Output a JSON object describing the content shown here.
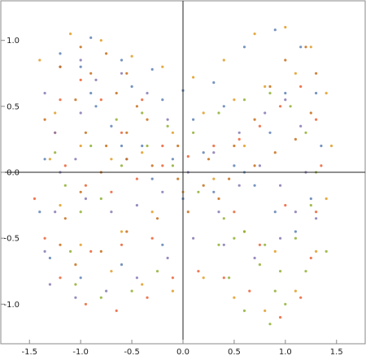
{
  "chart_data": {
    "type": "scatter",
    "title": "",
    "xlabel": "",
    "ylabel": "",
    "xlim": [
      -1.78,
      1.78
    ],
    "ylim": [
      -1.3,
      1.3
    ],
    "grid": false,
    "frame": true,
    "axes_through_origin": true,
    "x_ticks": [
      {
        "value": -1.5,
        "label": "-1.5"
      },
      {
        "value": -1.0,
        "label": "-1.0"
      },
      {
        "value": -0.5,
        "label": "-0.5"
      },
      {
        "value": 0.0,
        "label": "0.0"
      },
      {
        "value": 0.5,
        "label": "0.5"
      },
      {
        "value": 1.0,
        "label": "1.0"
      },
      {
        "value": 1.5,
        "label": "1.5"
      }
    ],
    "y_ticks": [
      {
        "value": 1.0,
        "label": "1.0"
      },
      {
        "value": 0.5,
        "label": "0.5"
      },
      {
        "value": 0.0,
        "label": "0.0"
      },
      {
        "value": -0.5,
        "label": "-0.5"
      },
      {
        "value": -1.0,
        "label": "-1.0"
      }
    ],
    "series": [
      {
        "color": "#5E81B5",
        "points": [
          [
            -1.2,
            0.9
          ],
          [
            -0.9,
            1.02
          ],
          [
            -0.6,
            0.85
          ],
          [
            -0.3,
            0.78
          ],
          [
            0.0,
            0.62
          ],
          [
            0.3,
            0.68
          ],
          [
            0.6,
            0.95
          ],
          [
            0.9,
            1.08
          ],
          [
            1.15,
            0.95
          ],
          [
            1.3,
            0.6
          ],
          [
            1.35,
            0.2
          ],
          [
            1.25,
            -0.2
          ],
          [
            1.1,
            -0.45
          ],
          [
            0.9,
            -0.3
          ],
          [
            0.7,
            -0.1
          ],
          [
            0.5,
            0.05
          ],
          [
            0.2,
            0.15
          ],
          [
            -0.1,
            0.1
          ],
          [
            -0.4,
            0.2
          ],
          [
            -0.7,
            0.35
          ],
          [
            -0.9,
            0.6
          ],
          [
            -1.0,
            0.8
          ],
          [
            -0.85,
            0.5
          ],
          [
            -0.6,
            0.2
          ],
          [
            -0.3,
            -0.05
          ],
          [
            0.0,
            -0.2
          ],
          [
            0.3,
            -0.15
          ],
          [
            0.6,
            0.0
          ],
          [
            0.85,
            0.3
          ],
          [
            1.0,
            0.6
          ],
          [
            0.4,
            0.5
          ],
          [
            0.1,
            0.4
          ],
          [
            -0.2,
            0.55
          ],
          [
            -0.5,
            0.65
          ],
          [
            -1.35,
            0.1
          ],
          [
            -1.4,
            -0.3
          ],
          [
            -1.3,
            -0.65
          ],
          [
            -1.0,
            -0.8
          ],
          [
            -0.6,
            -0.7
          ],
          [
            -0.2,
            -0.55
          ]
        ]
      },
      {
        "color": "#E19C24",
        "points": [
          [
            -1.4,
            0.85
          ],
          [
            -1.1,
            1.05
          ],
          [
            -0.8,
            1.0
          ],
          [
            -0.5,
            0.88
          ],
          [
            -0.2,
            0.8
          ],
          [
            0.1,
            0.72
          ],
          [
            0.4,
            0.85
          ],
          [
            0.7,
            1.05
          ],
          [
            1.0,
            1.1
          ],
          [
            1.25,
            0.95
          ],
          [
            1.4,
            0.6
          ],
          [
            1.45,
            0.2
          ],
          [
            1.4,
            -0.2
          ],
          [
            1.3,
            -0.6
          ],
          [
            1.1,
            -0.9
          ],
          [
            0.8,
            -1.05
          ],
          [
            0.5,
            -0.95
          ],
          [
            0.2,
            -0.8
          ],
          [
            -0.1,
            -0.9
          ],
          [
            -0.4,
            -0.85
          ],
          [
            -0.7,
            -0.75
          ],
          [
            -1.0,
            -0.55
          ],
          [
            -1.2,
            -0.25
          ],
          [
            -1.3,
            0.1
          ],
          [
            -1.25,
            0.45
          ],
          [
            -1.0,
            0.2
          ],
          [
            -0.7,
            0.1
          ],
          [
            -0.4,
            0.15
          ],
          [
            -0.1,
            0.3
          ],
          [
            0.2,
            0.45
          ],
          [
            0.5,
            0.55
          ],
          [
            0.8,
            0.65
          ],
          [
            1.1,
            0.75
          ],
          [
            0.6,
            0.2
          ],
          [
            0.3,
            -0.05
          ],
          [
            0.0,
            -0.15
          ],
          [
            -0.3,
            -0.3
          ],
          [
            -0.6,
            -0.45
          ],
          [
            0.9,
            -0.6
          ],
          [
            0.6,
            -0.45
          ]
        ]
      },
      {
        "color": "#8FB032",
        "points": [
          [
            -1.25,
            0.15
          ],
          [
            -1.15,
            -0.1
          ],
          [
            -1.0,
            -0.3
          ],
          [
            -0.8,
            -0.2
          ],
          [
            -0.6,
            0.05
          ],
          [
            -0.35,
            0.2
          ],
          [
            -0.1,
            0.05
          ],
          [
            0.15,
            -0.15
          ],
          [
            0.4,
            -0.35
          ],
          [
            0.6,
            -0.45
          ],
          [
            0.8,
            -0.55
          ],
          [
            0.95,
            -0.75
          ],
          [
            1.0,
            -1.0
          ],
          [
            0.85,
            -1.15
          ],
          [
            0.6,
            -1.05
          ],
          [
            0.45,
            -0.8
          ],
          [
            0.35,
            -0.55
          ],
          [
            0.5,
            -0.5
          ],
          [
            0.75,
            -0.7
          ],
          [
            0.9,
            -0.9
          ],
          [
            1.1,
            -0.5
          ],
          [
            1.25,
            -0.25
          ],
          [
            1.3,
            0.0
          ],
          [
            1.2,
            0.3
          ],
          [
            1.05,
            0.5
          ],
          [
            0.85,
            0.6
          ],
          [
            0.6,
            0.55
          ],
          [
            0.35,
            0.45
          ],
          [
            0.1,
            0.3
          ],
          [
            -0.15,
            0.35
          ],
          [
            -0.4,
            0.45
          ],
          [
            -0.65,
            0.4
          ],
          [
            -0.9,
            0.2
          ],
          [
            -1.1,
            -0.6
          ],
          [
            -1.05,
            -0.85
          ],
          [
            -0.8,
            -0.95
          ],
          [
            -0.5,
            -0.9
          ],
          [
            -0.25,
            -0.75
          ],
          [
            1.4,
            -0.6
          ],
          [
            1.2,
            -0.75
          ]
        ]
      },
      {
        "color": "#EB6235",
        "points": [
          [
            -1.45,
            -0.2
          ],
          [
            -1.35,
            -0.5
          ],
          [
            -1.2,
            -0.8
          ],
          [
            -0.95,
            -1.0
          ],
          [
            -0.65,
            -1.05
          ],
          [
            -0.35,
            -0.95
          ],
          [
            -0.1,
            -0.8
          ],
          [
            0.15,
            -0.75
          ],
          [
            0.4,
            -0.8
          ],
          [
            0.65,
            -0.9
          ],
          [
            0.95,
            -1.1
          ],
          [
            1.15,
            -0.95
          ],
          [
            1.25,
            -0.65
          ],
          [
            1.3,
            -0.3
          ],
          [
            1.35,
            0.05
          ],
          [
            1.3,
            0.4
          ],
          [
            1.15,
            0.65
          ],
          [
            0.95,
            0.5
          ],
          [
            0.75,
            0.35
          ],
          [
            0.55,
            0.25
          ],
          [
            0.3,
            0.2
          ],
          [
            0.05,
            0.12
          ],
          [
            -0.2,
            0.05
          ],
          [
            -0.45,
            -0.05
          ],
          [
            -0.7,
            -0.15
          ],
          [
            -0.95,
            -0.1
          ],
          [
            -1.15,
            0.05
          ],
          [
            -1.25,
            0.3
          ],
          [
            -1.2,
            0.55
          ],
          [
            -1.0,
            0.7
          ],
          [
            -0.8,
            0.55
          ],
          [
            -0.6,
            0.3
          ],
          [
            -0.4,
            0.55
          ],
          [
            -0.2,
            0.2
          ],
          [
            0.5,
            -0.3
          ],
          [
            0.75,
            -0.55
          ],
          [
            1.0,
            -0.25
          ],
          [
            -0.9,
            -0.6
          ],
          [
            -0.6,
            -0.55
          ],
          [
            -0.3,
            -0.5
          ]
        ]
      },
      {
        "color": "#8778B3",
        "points": [
          [
            -1.35,
            0.6
          ],
          [
            -1.25,
            0.3
          ],
          [
            -1.2,
            0.0
          ],
          [
            -1.25,
            -0.3
          ],
          [
            -1.35,
            -0.6
          ],
          [
            -1.3,
            -0.85
          ],
          [
            -1.05,
            -0.95
          ],
          [
            -0.75,
            -0.9
          ],
          [
            -0.45,
            -0.8
          ],
          [
            -0.15,
            -0.65
          ],
          [
            0.1,
            -0.5
          ],
          [
            0.35,
            -0.3
          ],
          [
            0.55,
            -0.1
          ],
          [
            0.75,
            0.05
          ],
          [
            0.95,
            -0.1
          ],
          [
            1.1,
            -0.3
          ],
          [
            1.2,
            0.0
          ],
          [
            1.15,
            0.35
          ],
          [
            1.0,
            0.55
          ],
          [
            0.8,
            0.45
          ],
          [
            0.55,
            0.3
          ],
          [
            0.3,
            0.15
          ],
          [
            0.05,
            0.0
          ],
          [
            -0.2,
            -0.15
          ],
          [
            -0.45,
            -0.25
          ],
          [
            -0.7,
            -0.3
          ],
          [
            -0.95,
            -0.2
          ],
          [
            -1.05,
            0.1
          ],
          [
            -1.0,
            0.45
          ],
          [
            -0.85,
            0.7
          ],
          [
            -0.6,
            0.75
          ],
          [
            -0.35,
            0.6
          ],
          [
            -0.15,
            0.4
          ],
          [
            -1.0,
            0.85
          ],
          [
            -1.2,
            0.8
          ],
          [
            0.4,
            -0.55
          ],
          [
            0.7,
            -0.65
          ],
          [
            0.95,
            -0.5
          ],
          [
            1.3,
            -0.35
          ],
          [
            -0.55,
            0.1
          ]
        ]
      },
      {
        "color": "#C56E1A",
        "points": [
          [
            -1.2,
            0.8
          ],
          [
            -1.0,
            0.95
          ],
          [
            -0.75,
            0.9
          ],
          [
            -0.55,
            0.75
          ],
          [
            -0.45,
            0.5
          ],
          [
            -0.55,
            0.3
          ],
          [
            -0.75,
            0.2
          ],
          [
            -0.95,
            0.3
          ],
          [
            -1.05,
            0.55
          ],
          [
            -0.9,
            0.75
          ],
          [
            -0.65,
            0.6
          ],
          [
            -0.35,
            0.4
          ],
          [
            -0.05,
            0.2
          ],
          [
            0.25,
            0.1
          ],
          [
            0.5,
            0.2
          ],
          [
            0.7,
            0.4
          ],
          [
            0.85,
            0.65
          ],
          [
            1.0,
            0.85
          ],
          [
            1.2,
            0.95
          ],
          [
            1.3,
            0.75
          ],
          [
            1.25,
            0.45
          ],
          [
            1.1,
            0.25
          ],
          [
            0.9,
            0.15
          ],
          [
            0.7,
            0.05
          ],
          [
            0.45,
            -0.05
          ],
          [
            0.2,
            -0.1
          ],
          [
            -0.05,
            -0.05
          ],
          [
            -0.3,
            0.05
          ],
          [
            -0.55,
            0.1
          ],
          [
            -0.8,
            0.0
          ],
          [
            -1.0,
            -0.15
          ],
          [
            -1.15,
            -0.35
          ],
          [
            -1.2,
            -0.55
          ],
          [
            -1.05,
            -0.7
          ],
          [
            -0.8,
            -0.6
          ],
          [
            -0.55,
            -0.45
          ],
          [
            -0.25,
            -0.35
          ],
          [
            0.05,
            -0.3
          ],
          [
            0.35,
            -0.2
          ],
          [
            -1.35,
            0.4
          ]
        ]
      }
    ]
  }
}
